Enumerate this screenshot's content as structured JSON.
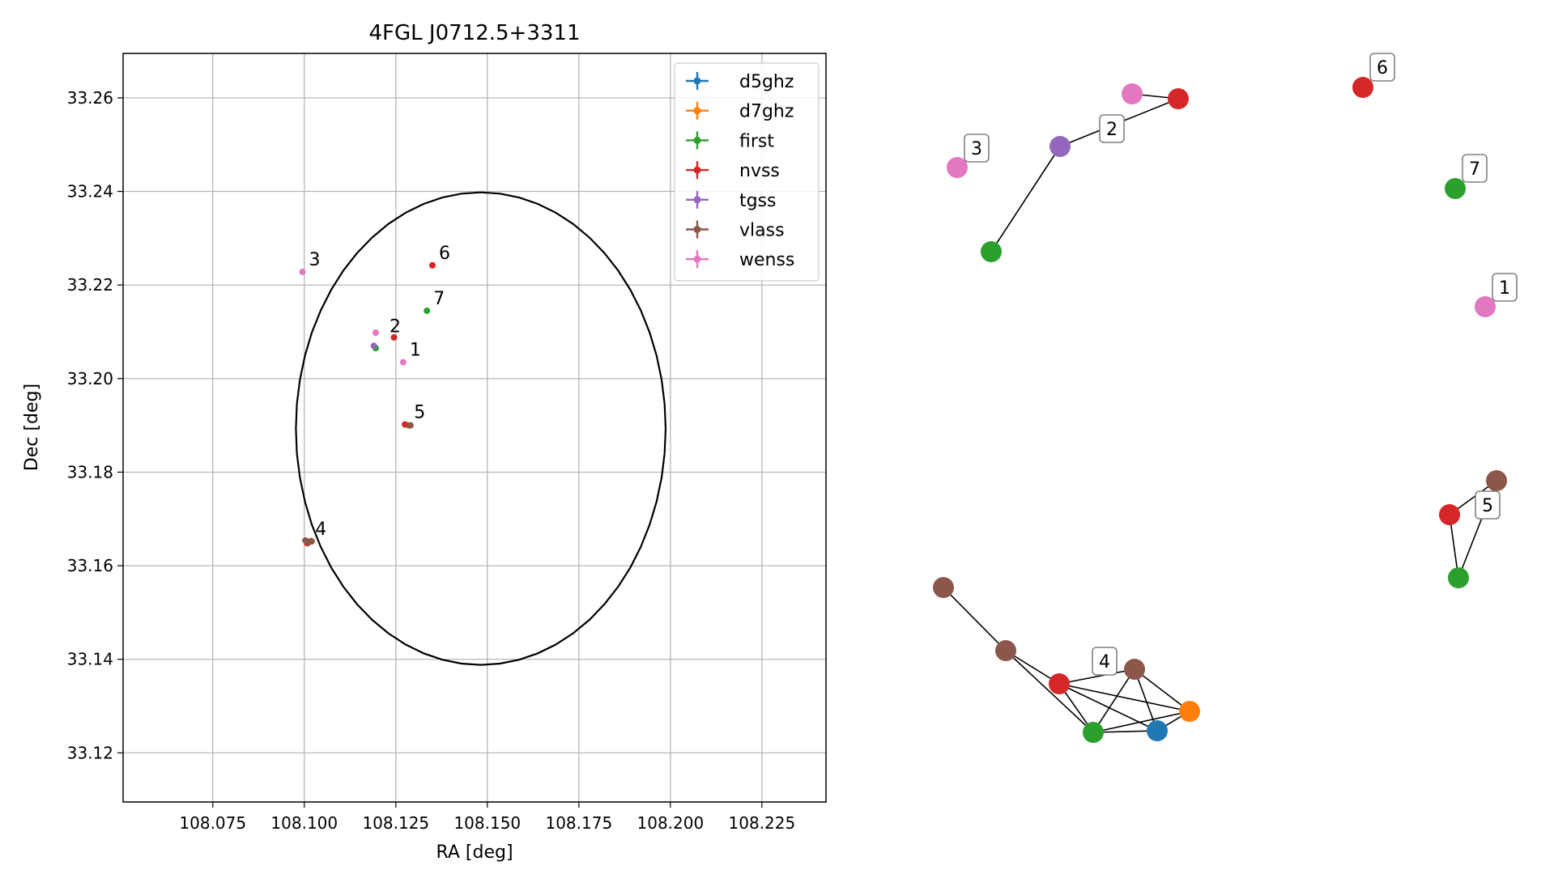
{
  "chart_data": [
    {
      "type": "scatter",
      "title": "4FGL J0712.5+3311",
      "xlabel": "RA [deg]",
      "ylabel": "Dec [deg]",
      "xlim": [
        108.0505,
        108.2425
      ],
      "ylim": [
        33.1095,
        33.2695
      ],
      "xticks": [
        108.075,
        108.1,
        108.125,
        108.15,
        108.175,
        108.2,
        108.225
      ],
      "xtick_labels": [
        "108.075",
        "108.100",
        "108.125",
        "108.150",
        "108.175",
        "108.200",
        "108.225"
      ],
      "yticks": [
        33.12,
        33.14,
        33.16,
        33.18,
        33.2,
        33.22,
        33.24,
        33.26
      ],
      "ytick_labels": [
        "33.12",
        "33.14",
        "33.16",
        "33.18",
        "33.20",
        "33.22",
        "33.24",
        "33.26"
      ],
      "grid": true,
      "legend_position": "top-right",
      "series": [
        {
          "name": "d5ghz",
          "color": "#1f77b4",
          "points": [
            {
              "x": 108.1015,
              "y": 33.1652
            }
          ]
        },
        {
          "name": "d7ghz",
          "color": "#ff7f0e",
          "points": [
            {
              "x": 108.1018,
              "y": 33.1653
            }
          ]
        },
        {
          "name": "first",
          "color": "#2ca02c",
          "points": [
            {
              "x": 108.1195,
              "y": 33.2065
            },
            {
              "x": 108.1335,
              "y": 33.2145
            },
            {
              "x": 108.1285,
              "y": 33.19
            },
            {
              "x": 108.1012,
              "y": 33.1651
            }
          ]
        },
        {
          "name": "nvss",
          "color": "#d62728",
          "points": [
            {
              "x": 108.1245,
              "y": 33.2088
            },
            {
              "x": 108.135,
              "y": 33.2242
            },
            {
              "x": 108.1275,
              "y": 33.1902
            },
            {
              "x": 108.1008,
              "y": 33.1648
            }
          ]
        },
        {
          "name": "tgss",
          "color": "#9467bd",
          "points": [
            {
              "x": 108.119,
              "y": 33.207
            }
          ]
        },
        {
          "name": "vlass",
          "color": "#8c564b",
          "points": [
            {
              "x": 108.129,
              "y": 33.19
            },
            {
              "x": 108.1003,
              "y": 33.1654
            },
            {
              "x": 108.102,
              "y": 33.1652
            },
            {
              "x": 108.1012,
              "y": 33.165
            }
          ]
        },
        {
          "name": "wenss",
          "color": "#e377c2",
          "points": [
            {
              "x": 108.1195,
              "y": 33.2098
            },
            {
              "x": 108.0995,
              "y": 33.2228
            },
            {
              "x": 108.127,
              "y": 33.2035
            }
          ]
        }
      ],
      "circle": {
        "center_x": 108.1482,
        "center_y": 33.1893,
        "radius": 0.0505
      },
      "annotations": [
        {
          "text": "1",
          "x": 108.127,
          "y": 33.2035
        },
        {
          "text": "2",
          "x": 108.1215,
          "y": 33.2085
        },
        {
          "text": "3",
          "x": 108.0995,
          "y": 33.2228
        },
        {
          "text": "4",
          "x": 108.1012,
          "y": 33.1652
        },
        {
          "text": "5",
          "x": 108.1282,
          "y": 33.1902
        },
        {
          "text": "6",
          "x": 108.135,
          "y": 33.2242
        },
        {
          "text": "7",
          "x": 108.1335,
          "y": 33.2145
        }
      ]
    },
    {
      "type": "network",
      "groups": [
        {
          "label": "1",
          "nodes": [
            {
              "color": "#e377c2"
            }
          ]
        },
        {
          "label": "2",
          "nodes": [
            {
              "color": "#e377c2"
            },
            {
              "color": "#d62728"
            },
            {
              "color": "#9467bd"
            },
            {
              "color": "#2ca02c"
            }
          ]
        },
        {
          "label": "3",
          "nodes": [
            {
              "color": "#e377c2"
            }
          ]
        },
        {
          "label": "4",
          "nodes": [
            {
              "color": "#8c564b"
            },
            {
              "color": "#8c564b"
            },
            {
              "color": "#d62728"
            },
            {
              "color": "#8c564b"
            },
            {
              "color": "#2ca02c"
            },
            {
              "color": "#1f77b4"
            },
            {
              "color": "#ff7f0e"
            }
          ]
        },
        {
          "label": "5",
          "nodes": [
            {
              "color": "#8c564b"
            },
            {
              "color": "#d62728"
            },
            {
              "color": "#2ca02c"
            }
          ]
        },
        {
          "label": "6",
          "nodes": [
            {
              "color": "#d62728"
            }
          ]
        },
        {
          "label": "7",
          "nodes": [
            {
              "color": "#2ca02c"
            }
          ]
        }
      ]
    }
  ]
}
